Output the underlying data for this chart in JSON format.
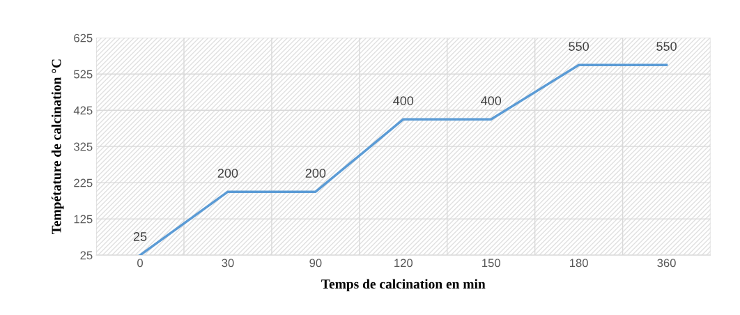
{
  "chart_data": {
    "type": "line",
    "xlabel": "Temps de calcination en min",
    "ylabel": "Tempétature de calcination °C",
    "categories": [
      "0",
      "30",
      "90",
      "120",
      "150",
      "180",
      "360"
    ],
    "series": [
      {
        "color": "#5b9bd5",
        "values": [
          25,
          200,
          200,
          400,
          400,
          550,
          550
        ]
      }
    ],
    "ylim": [
      25,
      625
    ],
    "yticks": [
      25,
      125,
      225,
      325,
      425,
      525,
      625
    ],
    "grid": true,
    "data_labels": true,
    "marker": "none",
    "line_style": "solid"
  }
}
